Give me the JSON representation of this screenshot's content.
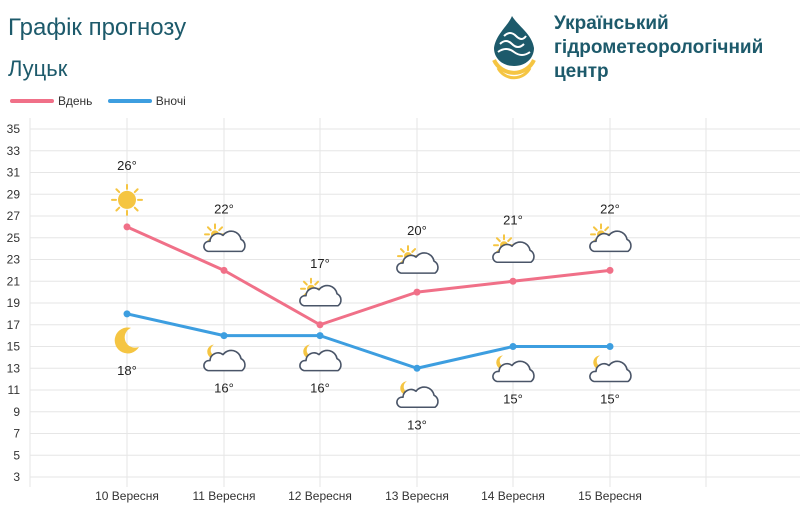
{
  "header": {
    "title": "Графік прогнозу",
    "city": "Луцьк"
  },
  "logo": {
    "lines": [
      "Український",
      "гідрометеорологічний",
      "центр"
    ]
  },
  "colors": {
    "day": "#f07088",
    "night": "#3d9ee0",
    "grid": "#e6e6e6",
    "text": "#1d5a6b",
    "sun": "#f5c542",
    "cloud": "#4a5568"
  },
  "chart_data": {
    "type": "line",
    "categories": [
      "10 Вересня",
      "11 Вересня",
      "12 Вересня",
      "13 Вересня",
      "14 Вересня",
      "15 Вересня"
    ],
    "series": [
      {
        "name": "Вдень",
        "values": [
          26,
          22,
          17,
          20,
          21,
          22
        ],
        "icons": [
          "sun-icon",
          "partly-cloudy-icon",
          "partly-cloudy-icon",
          "partly-cloudy-icon",
          "partly-cloudy-icon",
          "partly-cloudy-icon"
        ]
      },
      {
        "name": "Вночі",
        "values": [
          18,
          16,
          16,
          13,
          15,
          15
        ],
        "icons": [
          "moon-icon",
          "partly-cloudy-night-icon",
          "partly-cloudy-night-icon",
          "partly-cloudy-night-icon",
          "partly-cloudy-night-icon",
          "partly-cloudy-night-icon"
        ]
      }
    ],
    "ylim": [
      3,
      35
    ],
    "yticks": [
      3,
      5,
      7,
      9,
      11,
      13,
      15,
      17,
      19,
      21,
      23,
      25,
      27,
      29,
      31,
      33,
      35
    ],
    "degree_suffix": "°",
    "grid": true,
    "legend_position": "top-left"
  }
}
